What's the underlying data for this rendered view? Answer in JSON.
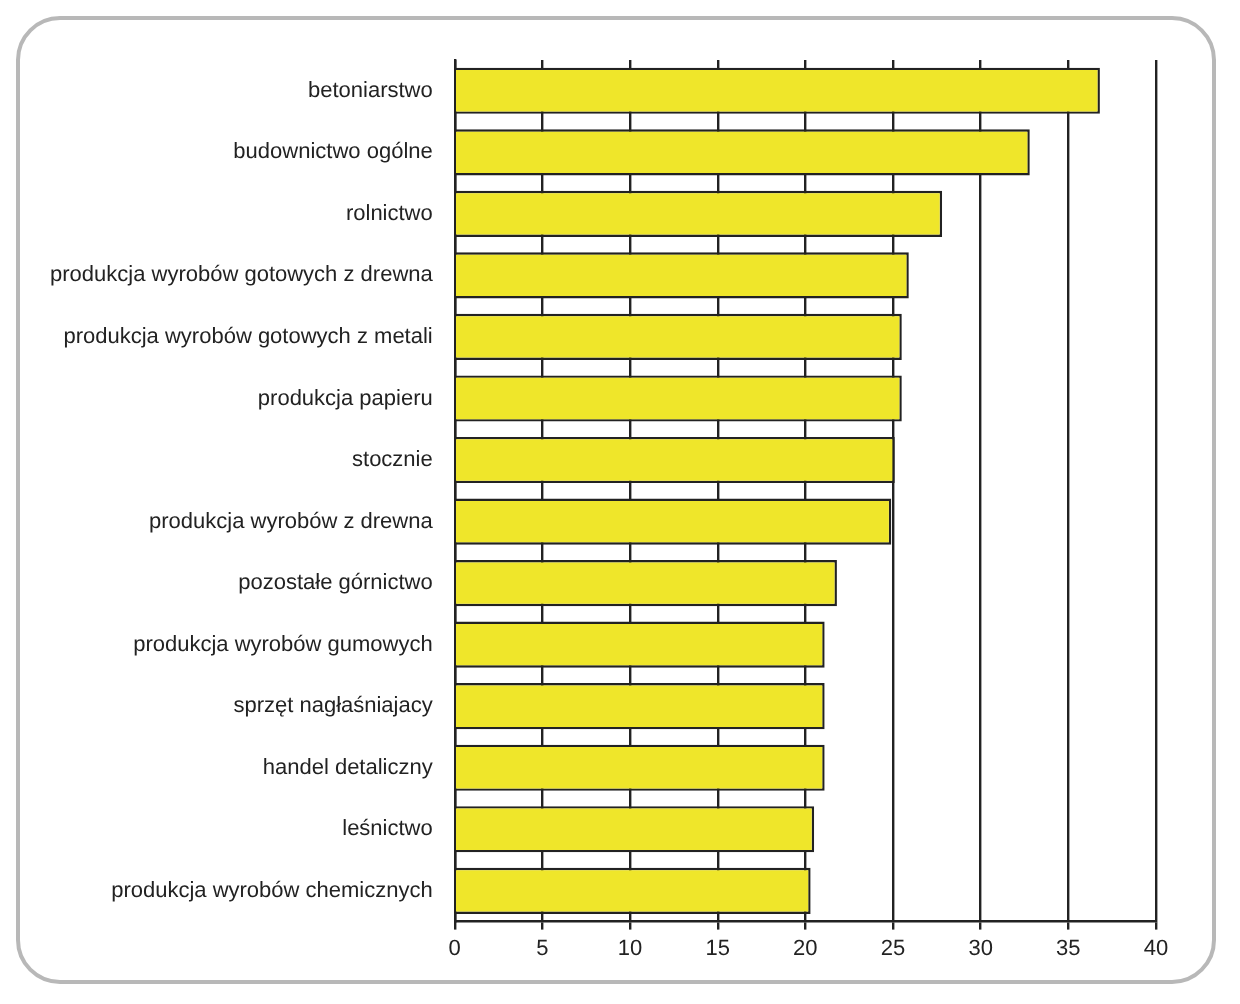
{
  "chart_data": {
    "type": "bar",
    "orientation": "horizontal",
    "categories": [
      "betoniarstwo",
      "budownictwo ogólne",
      "rolnictwo",
      "produkcja wyrobów gotowych z drewna",
      "produkcja wyrobów gotowych z metali",
      "produkcja papieru",
      "stocznie",
      "produkcja wyrobów z drewna",
      "pozostałe górnictwo",
      "produkcja wyrobów gumowych",
      "sprzęt nagłaśniajacy",
      "handel detaliczny",
      "leśnictwo",
      "produkcja wyrobów chemicznych"
    ],
    "values": [
      36.8,
      32.8,
      27.8,
      25.9,
      25.5,
      25.5,
      25.1,
      24.9,
      21.8,
      21.1,
      21.1,
      21.1,
      20.5,
      20.3
    ],
    "color": "#efe62a",
    "xlim": [
      0,
      40
    ],
    "xticks": [
      0,
      5,
      10,
      15,
      20,
      25,
      30,
      35,
      40
    ],
    "grid": "x",
    "legend": false
  }
}
